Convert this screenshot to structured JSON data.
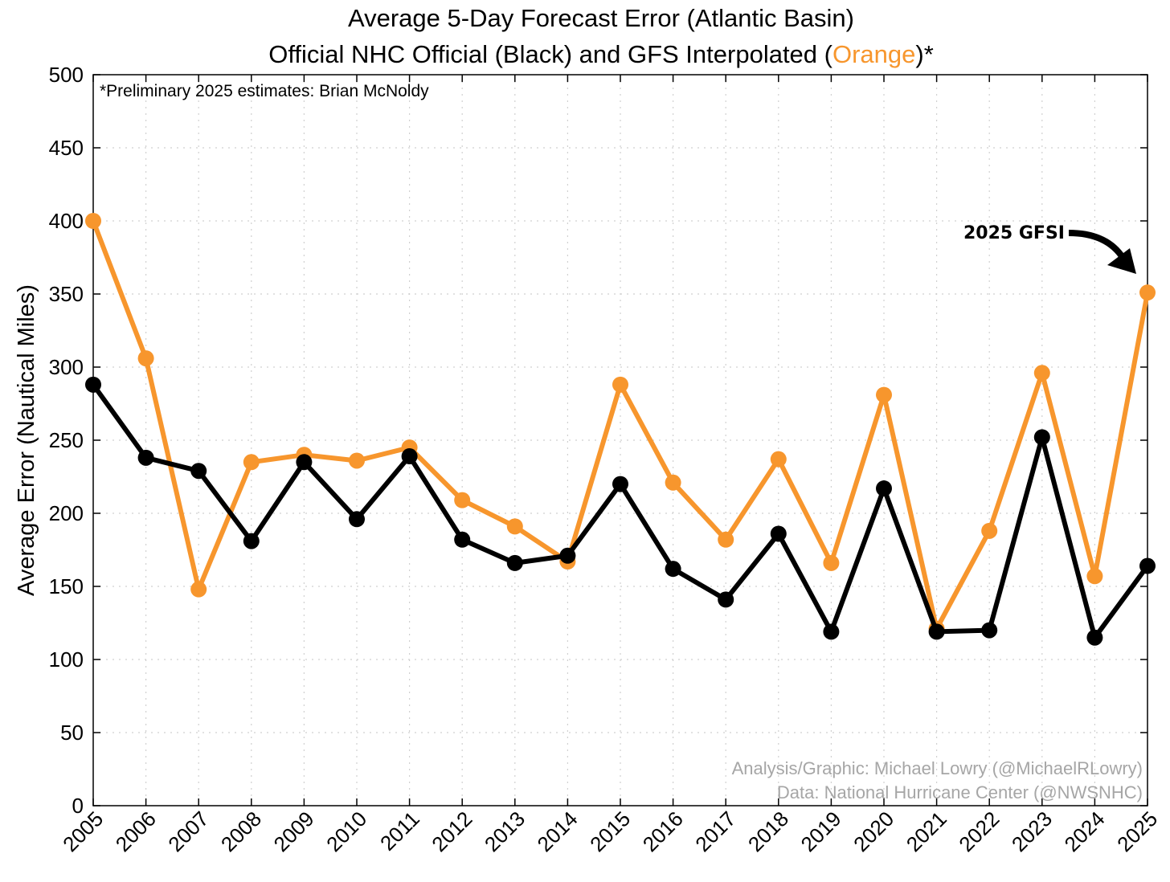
{
  "chart_data": {
    "type": "line",
    "title_line1": "Average 5-Day Forecast Error (Atlantic Basin)",
    "title_line2_prefix": "Official NHC Official (Black) and GFS Interpolated (",
    "title_line2_highlight": "Orange",
    "title_line2_suffix": ")*",
    "ylabel": "Average Error (Nautical Miles)",
    "xlabel": "",
    "x": [
      "2005",
      "2006",
      "2007",
      "2008",
      "2009",
      "2010",
      "2011",
      "2012",
      "2013",
      "2014",
      "2015",
      "2016",
      "2017",
      "2018",
      "2019",
      "2020",
      "2021",
      "2022",
      "2023",
      "2024",
      "2025"
    ],
    "yticks": [
      0,
      50,
      100,
      150,
      200,
      250,
      300,
      350,
      400,
      450,
      500
    ],
    "ylim": [
      0,
      500
    ],
    "grid": true,
    "series": [
      {
        "color": "#000000",
        "values": [
          288,
          238,
          229,
          181,
          235,
          196,
          239,
          182,
          166,
          171,
          220,
          162,
          141,
          186,
          119,
          217,
          119,
          120,
          252,
          115,
          164
        ]
      },
      {
        "color": "#f7962d",
        "values": [
          400,
          306,
          148,
          235,
          240,
          236,
          245,
          209,
          191,
          167,
          288,
          221,
          182,
          237,
          166,
          281,
          121,
          188,
          296,
          157,
          351
        ]
      }
    ],
    "note": "*Preliminary 2025 estimates: Brian McNoldy",
    "credit_line1": "Analysis/Graphic: Michael Lowry (@MichaelRLowry)",
    "credit_line2": "Data: National Hurricane Center (@NWSNHC)",
    "annotation": "2025 GFSI"
  },
  "colors": {
    "highlight": "#f7962d",
    "grid": "#d0d0d0"
  }
}
